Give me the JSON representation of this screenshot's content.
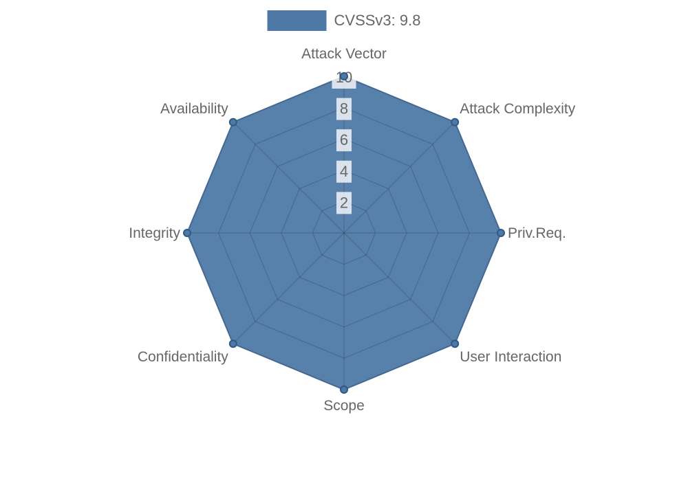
{
  "chart_data": {
    "type": "radar",
    "legend": {
      "label": "CVSSv3: 9.8",
      "position": "top"
    },
    "categories": [
      "Attack Vector",
      "Attack Complexity",
      "Priv.Req.",
      "User Interaction",
      "Scope",
      "Confidentiality",
      "Integrity",
      "Availability"
    ],
    "series": [
      {
        "name": "CVSSv3: 9.8",
        "values": [
          10,
          10,
          10,
          10,
          10,
          10,
          10,
          10
        ]
      }
    ],
    "ticks": [
      2,
      4,
      6,
      8,
      10
    ],
    "rlim": [
      0,
      10
    ],
    "grid": true,
    "colors": {
      "fill": "#4e79a7",
      "fill_opacity": 0.95,
      "border": "#44688f",
      "point_fill": "#4e79a7",
      "point_stroke": "#2e5984",
      "grid_line": "rgba(0,0,0,0.16)",
      "label_text": "#666666",
      "tick_text": "#666666",
      "tick_backdrop": "rgba(255,255,255,0.78)"
    }
  }
}
